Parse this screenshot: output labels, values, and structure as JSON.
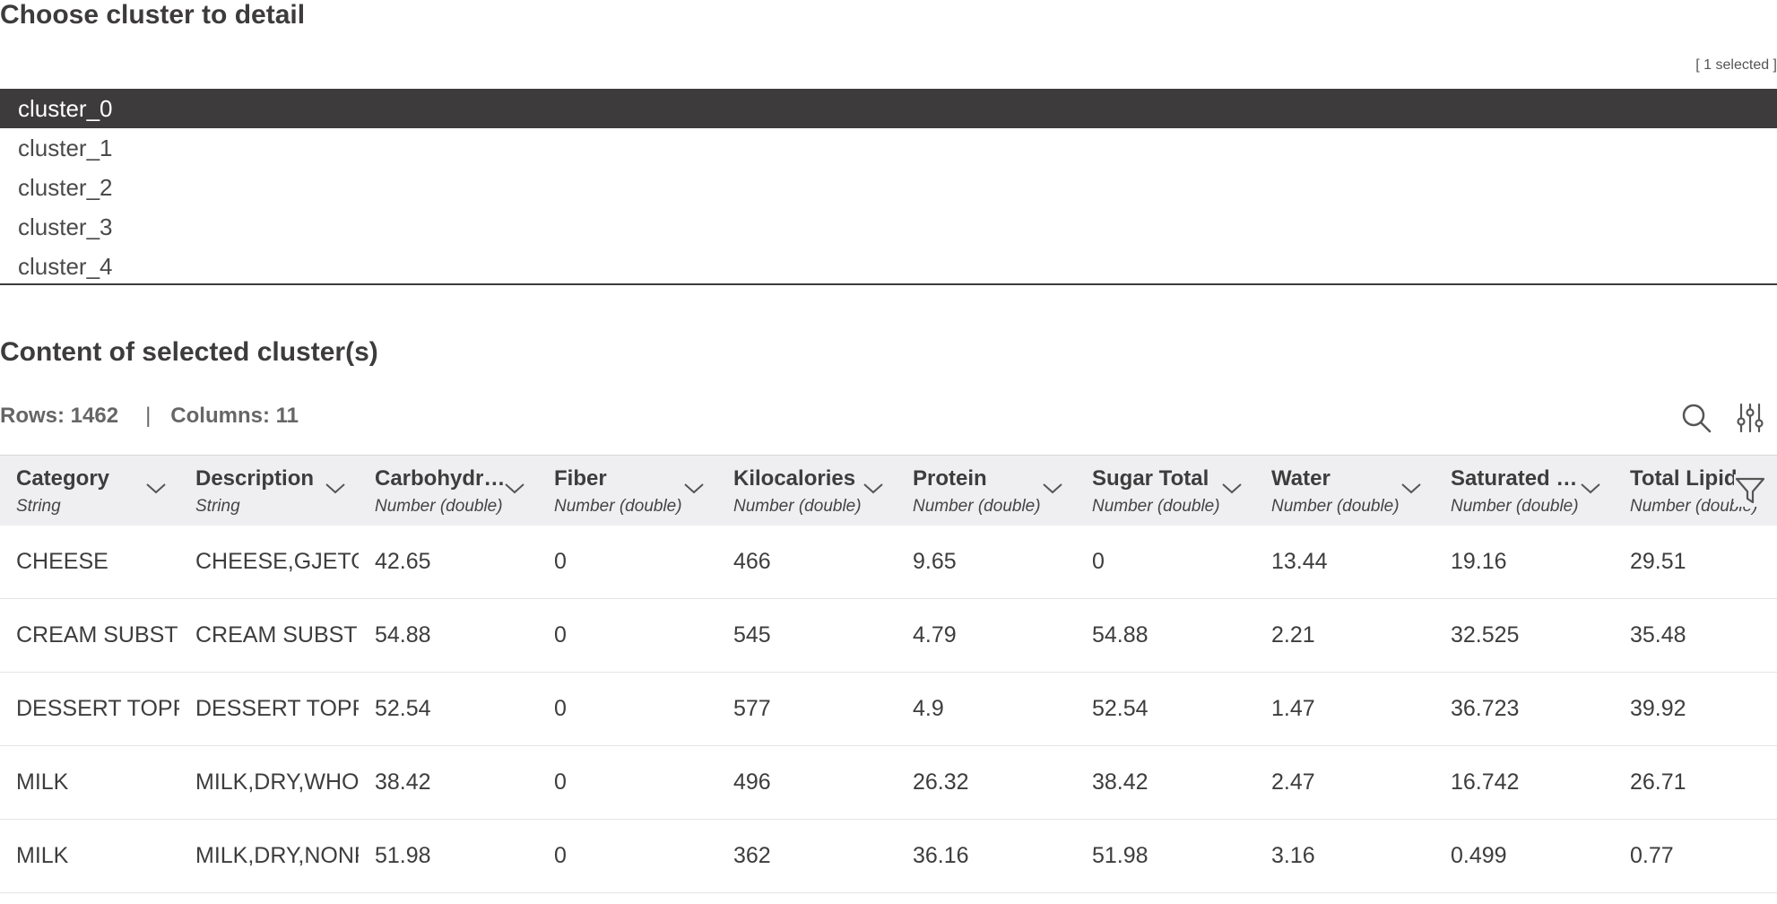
{
  "section1": {
    "title": "Choose cluster to detail",
    "selected_count": "[ 1 selected ]"
  },
  "clusters": [
    {
      "label": "cluster_0",
      "selected": true
    },
    {
      "label": "cluster_1",
      "selected": false
    },
    {
      "label": "cluster_2",
      "selected": false
    },
    {
      "label": "cluster_3",
      "selected": false
    },
    {
      "label": "cluster_4",
      "selected": false
    }
  ],
  "section2": {
    "title": "Content of selected cluster(s)"
  },
  "table_info": {
    "rows": "Rows: 1462",
    "separator": "|",
    "columns": "Columns: 11"
  },
  "icons": {
    "search": "search-icon",
    "settings": "sliders-icon",
    "filter": "filter-icon",
    "sort": "chevron-down-icon"
  },
  "columns": [
    {
      "name": "Category",
      "type": "String"
    },
    {
      "name": "Description",
      "type": "String"
    },
    {
      "name": "Carbohydrate",
      "type": "Number (double)"
    },
    {
      "name": "Fiber",
      "type": "Number (double)"
    },
    {
      "name": "Kilocalories",
      "type": "Number (double)"
    },
    {
      "name": "Protein",
      "type": "Number (double)"
    },
    {
      "name": "Sugar Total",
      "type": "Number (double)"
    },
    {
      "name": "Water",
      "type": "Number (double)"
    },
    {
      "name": "Saturated Fat",
      "type": "Number (double)"
    },
    {
      "name": "Total Lipid",
      "type": "Number (double)"
    }
  ],
  "rows": [
    [
      "CHEESE",
      "CHEESE,GJETOST",
      "42.65",
      "0",
      "466",
      "9.65",
      "0",
      "13.44",
      "19.16",
      "29.51"
    ],
    [
      "CREAM SUBSTITUTE",
      "CREAM SUBSTITUTE",
      "54.88",
      "0",
      "545",
      "4.79",
      "54.88",
      "2.21",
      "32.525",
      "35.48"
    ],
    [
      "DESSERT TOPPING",
      "DESSERT TOPPING",
      "52.54",
      "0",
      "577",
      "4.9",
      "52.54",
      "1.47",
      "36.723",
      "39.92"
    ],
    [
      "MILK",
      "MILK,DRY,WHOLE",
      "38.42",
      "0",
      "496",
      "26.32",
      "38.42",
      "2.47",
      "16.742",
      "26.71"
    ],
    [
      "MILK",
      "MILK,DRY,NONFAT",
      "51.98",
      "0",
      "362",
      "36.16",
      "51.98",
      "3.16",
      "0.499",
      "0.77"
    ]
  ]
}
